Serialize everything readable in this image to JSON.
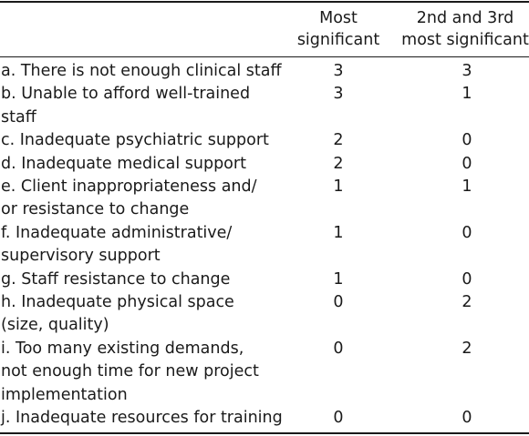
{
  "table": {
    "headers": {
      "col1": [
        "Most",
        "significant"
      ],
      "col2": [
        "2nd and 3rd",
        "most significant"
      ]
    },
    "rows": [
      {
        "label": [
          "a. There is not enough clinical staff"
        ],
        "most": "3",
        "second_third": "3"
      },
      {
        "label": [
          "b. Unable to afford well-trained",
          "staff"
        ],
        "most": "3",
        "second_third": "1"
      },
      {
        "label": [
          "c. Inadequate psychiatric support"
        ],
        "most": "2",
        "second_third": "0"
      },
      {
        "label": [
          "d. Inadequate medical support"
        ],
        "most": "2",
        "second_third": "0"
      },
      {
        "label": [
          "e. Client inappropriateness and/",
          "or resistance to change"
        ],
        "most": "1",
        "second_third": "1"
      },
      {
        "label": [
          "f. Inadequate administrative/",
          "supervisory support"
        ],
        "most": "1",
        "second_third": "0"
      },
      {
        "label": [
          "g. Staff resistance to change"
        ],
        "most": "1",
        "second_third": "0"
      },
      {
        "label": [
          "h. Inadequate physical space",
          "(size, quality)"
        ],
        "most": "0",
        "second_third": "2"
      },
      {
        "label": [
          "i. Too many existing demands,",
          "not enough time for new project",
          "implementation"
        ],
        "most": "0",
        "second_third": "2"
      },
      {
        "label": [
          "j. Inadequate resources for training"
        ],
        "most": "0",
        "second_third": "0"
      }
    ]
  }
}
